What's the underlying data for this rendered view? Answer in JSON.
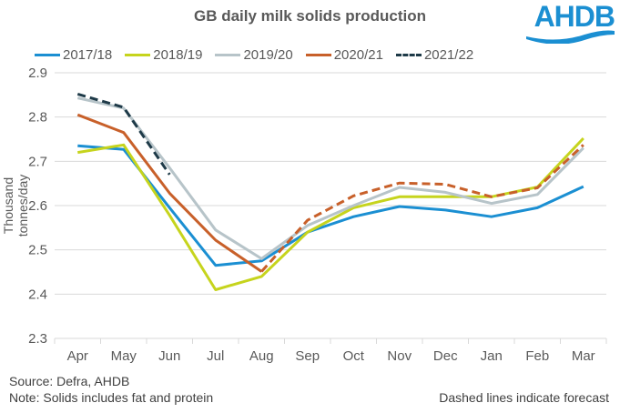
{
  "logo_text": "AHDB",
  "chart_data": {
    "type": "line",
    "title": "GB daily milk solids production",
    "xlabel": "",
    "ylabel": "Thousand tonnes/day",
    "ylim": [
      2.3,
      2.9
    ],
    "yticks": [
      "2.3",
      "2.4",
      "2.5",
      "2.6",
      "2.7",
      "2.8",
      "2.9"
    ],
    "ytick_values": [
      2.3,
      2.4,
      2.5,
      2.6,
      2.7,
      2.8,
      2.9
    ],
    "grid": true,
    "legend_position": "top",
    "categories": [
      "Apr",
      "May",
      "Jun",
      "Jul",
      "Aug",
      "Sep",
      "Oct",
      "Nov",
      "Dec",
      "Jan",
      "Feb",
      "Mar"
    ],
    "series": [
      {
        "name": "2017/18",
        "color": "#1b8fd2",
        "style": "solid",
        "values": [
          2.735,
          2.727,
          2.595,
          2.465,
          2.475,
          2.54,
          2.575,
          2.598,
          2.59,
          2.575,
          2.595,
          2.643
        ],
        "forecast_from": null
      },
      {
        "name": "2018/19",
        "color": "#c6d41d",
        "style": "solid",
        "values": [
          2.72,
          2.737,
          2.578,
          2.41,
          2.44,
          2.54,
          2.595,
          2.62,
          2.62,
          2.62,
          2.642,
          2.752
        ],
        "forecast_from": null
      },
      {
        "name": "2019/20",
        "color": "#b7c4c9",
        "style": "solid",
        "values": [
          2.843,
          2.82,
          2.685,
          2.545,
          2.48,
          2.555,
          2.6,
          2.641,
          2.63,
          2.605,
          2.625,
          2.73
        ],
        "forecast_from": null
      },
      {
        "name": "2020/21",
        "color": "#c8602a",
        "style": "solid",
        "values": [
          2.805,
          2.765,
          2.628,
          2.522,
          2.451,
          2.567,
          2.622,
          2.651,
          2.648,
          2.62,
          2.64,
          2.737
        ],
        "forecast_from": 4
      },
      {
        "name": "2021/22",
        "color": "#1e3a48",
        "style": "dashed",
        "values": [
          2.852,
          2.822,
          2.67,
          null,
          null,
          null,
          null,
          null,
          null,
          null,
          null,
          null
        ],
        "forecast_from": 0
      }
    ],
    "annotations": [
      "Dashed lines indicate forecast"
    ]
  },
  "footer": {
    "source": "Source: Defra, AHDB",
    "note": "Note: Solids includes fat and protein",
    "forecast_note": "Dashed lines indicate forecast"
  }
}
